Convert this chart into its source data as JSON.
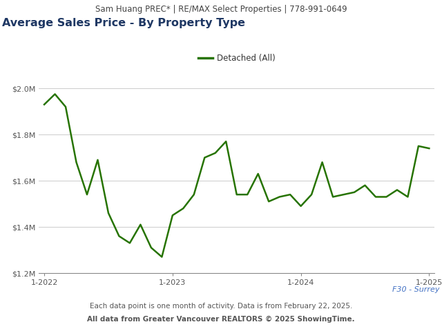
{
  "header_text": "Sam Huang PREC* | RE/MAX Select Properties | 778-991-0649",
  "title": "Average Sales Price - By Property Type",
  "legend_label": "Detached (All)",
  "line_color": "#267300",
  "footer_line1": "Each data point is one month of activity. Data is from February 22, 2025.",
  "footer_line2": "All data from Greater Vancouver REALTORS © 2025 ShowingTime.",
  "footer_label": "F30 - Surrey",
  "header_bg_color": "#e8e8e8",
  "plot_bg_color": "#ffffff",
  "fig_bg_color": "#ffffff",
  "title_color": "#1f3864",
  "header_text_color": "#444444",
  "footer_color": "#555555",
  "footer_label_color": "#4472c4",
  "ylim": [
    1200000,
    2060000
  ],
  "yticks": [
    1200000,
    1400000,
    1600000,
    1800000,
    2000000
  ],
  "ytick_labels": [
    "$1.2M",
    "$1.4M",
    "$1.6M",
    "$1.8M",
    "$2.0M"
  ],
  "values": [
    1930000,
    1975000,
    1920000,
    1680000,
    1540000,
    1690000,
    1460000,
    1360000,
    1330000,
    1410000,
    1310000,
    1270000,
    1450000,
    1480000,
    1540000,
    1700000,
    1720000,
    1770000,
    1540000,
    1540000,
    1630000,
    1510000,
    1530000,
    1540000,
    1490000,
    1540000,
    1680000,
    1530000,
    1540000,
    1550000,
    1580000,
    1530000,
    1530000,
    1560000,
    1530000,
    1750000,
    1740000
  ],
  "xtick_positions": [
    0,
    12,
    24,
    36
  ],
  "xtick_labels": [
    "1-2022",
    "1-2023",
    "1-2024",
    "1-2025"
  ]
}
